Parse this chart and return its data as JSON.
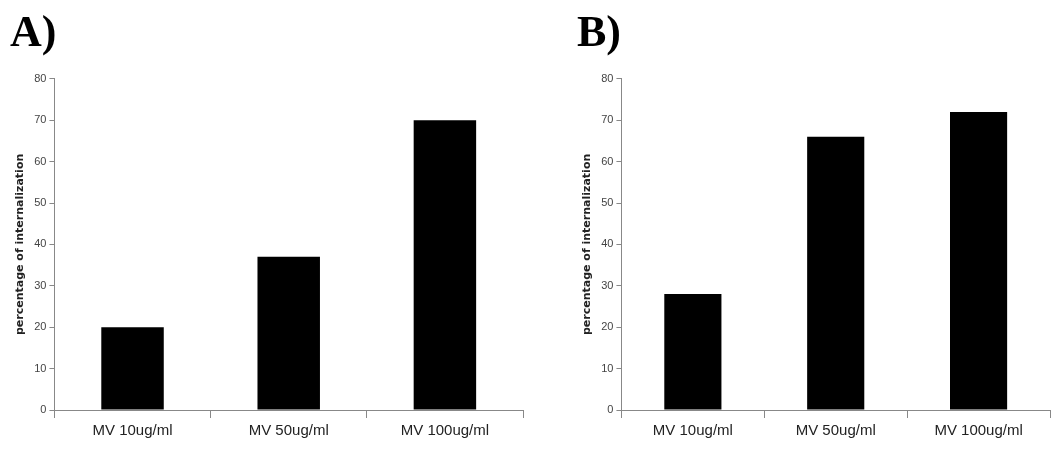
{
  "chart_data": [
    {
      "type": "bar",
      "title": "A)",
      "ylabel": "percentage of internalization",
      "categories": [
        "MV 10ug/ml",
        "MV 50ug/ml",
        "MV 100ug/ml"
      ],
      "values": [
        20,
        37,
        70
      ],
      "color": "#000000",
      "ylim": [
        0,
        80
      ],
      "yticks": [
        0,
        10,
        20,
        30,
        40,
        50,
        60,
        70,
        80
      ],
      "grid": false,
      "legend": false
    },
    {
      "type": "bar",
      "title": "B)",
      "ylabel": "percentage of internalization",
      "categories": [
        "MV 10ug/ml",
        "MV 50ug/ml",
        "MV 100ug/ml"
      ],
      "values": [
        28,
        66,
        72
      ],
      "color": "#000000",
      "ylim": [
        0,
        80
      ],
      "yticks": [
        0,
        10,
        20,
        30,
        40,
        50,
        60,
        70,
        80
      ],
      "grid": false,
      "legend": false
    }
  ]
}
